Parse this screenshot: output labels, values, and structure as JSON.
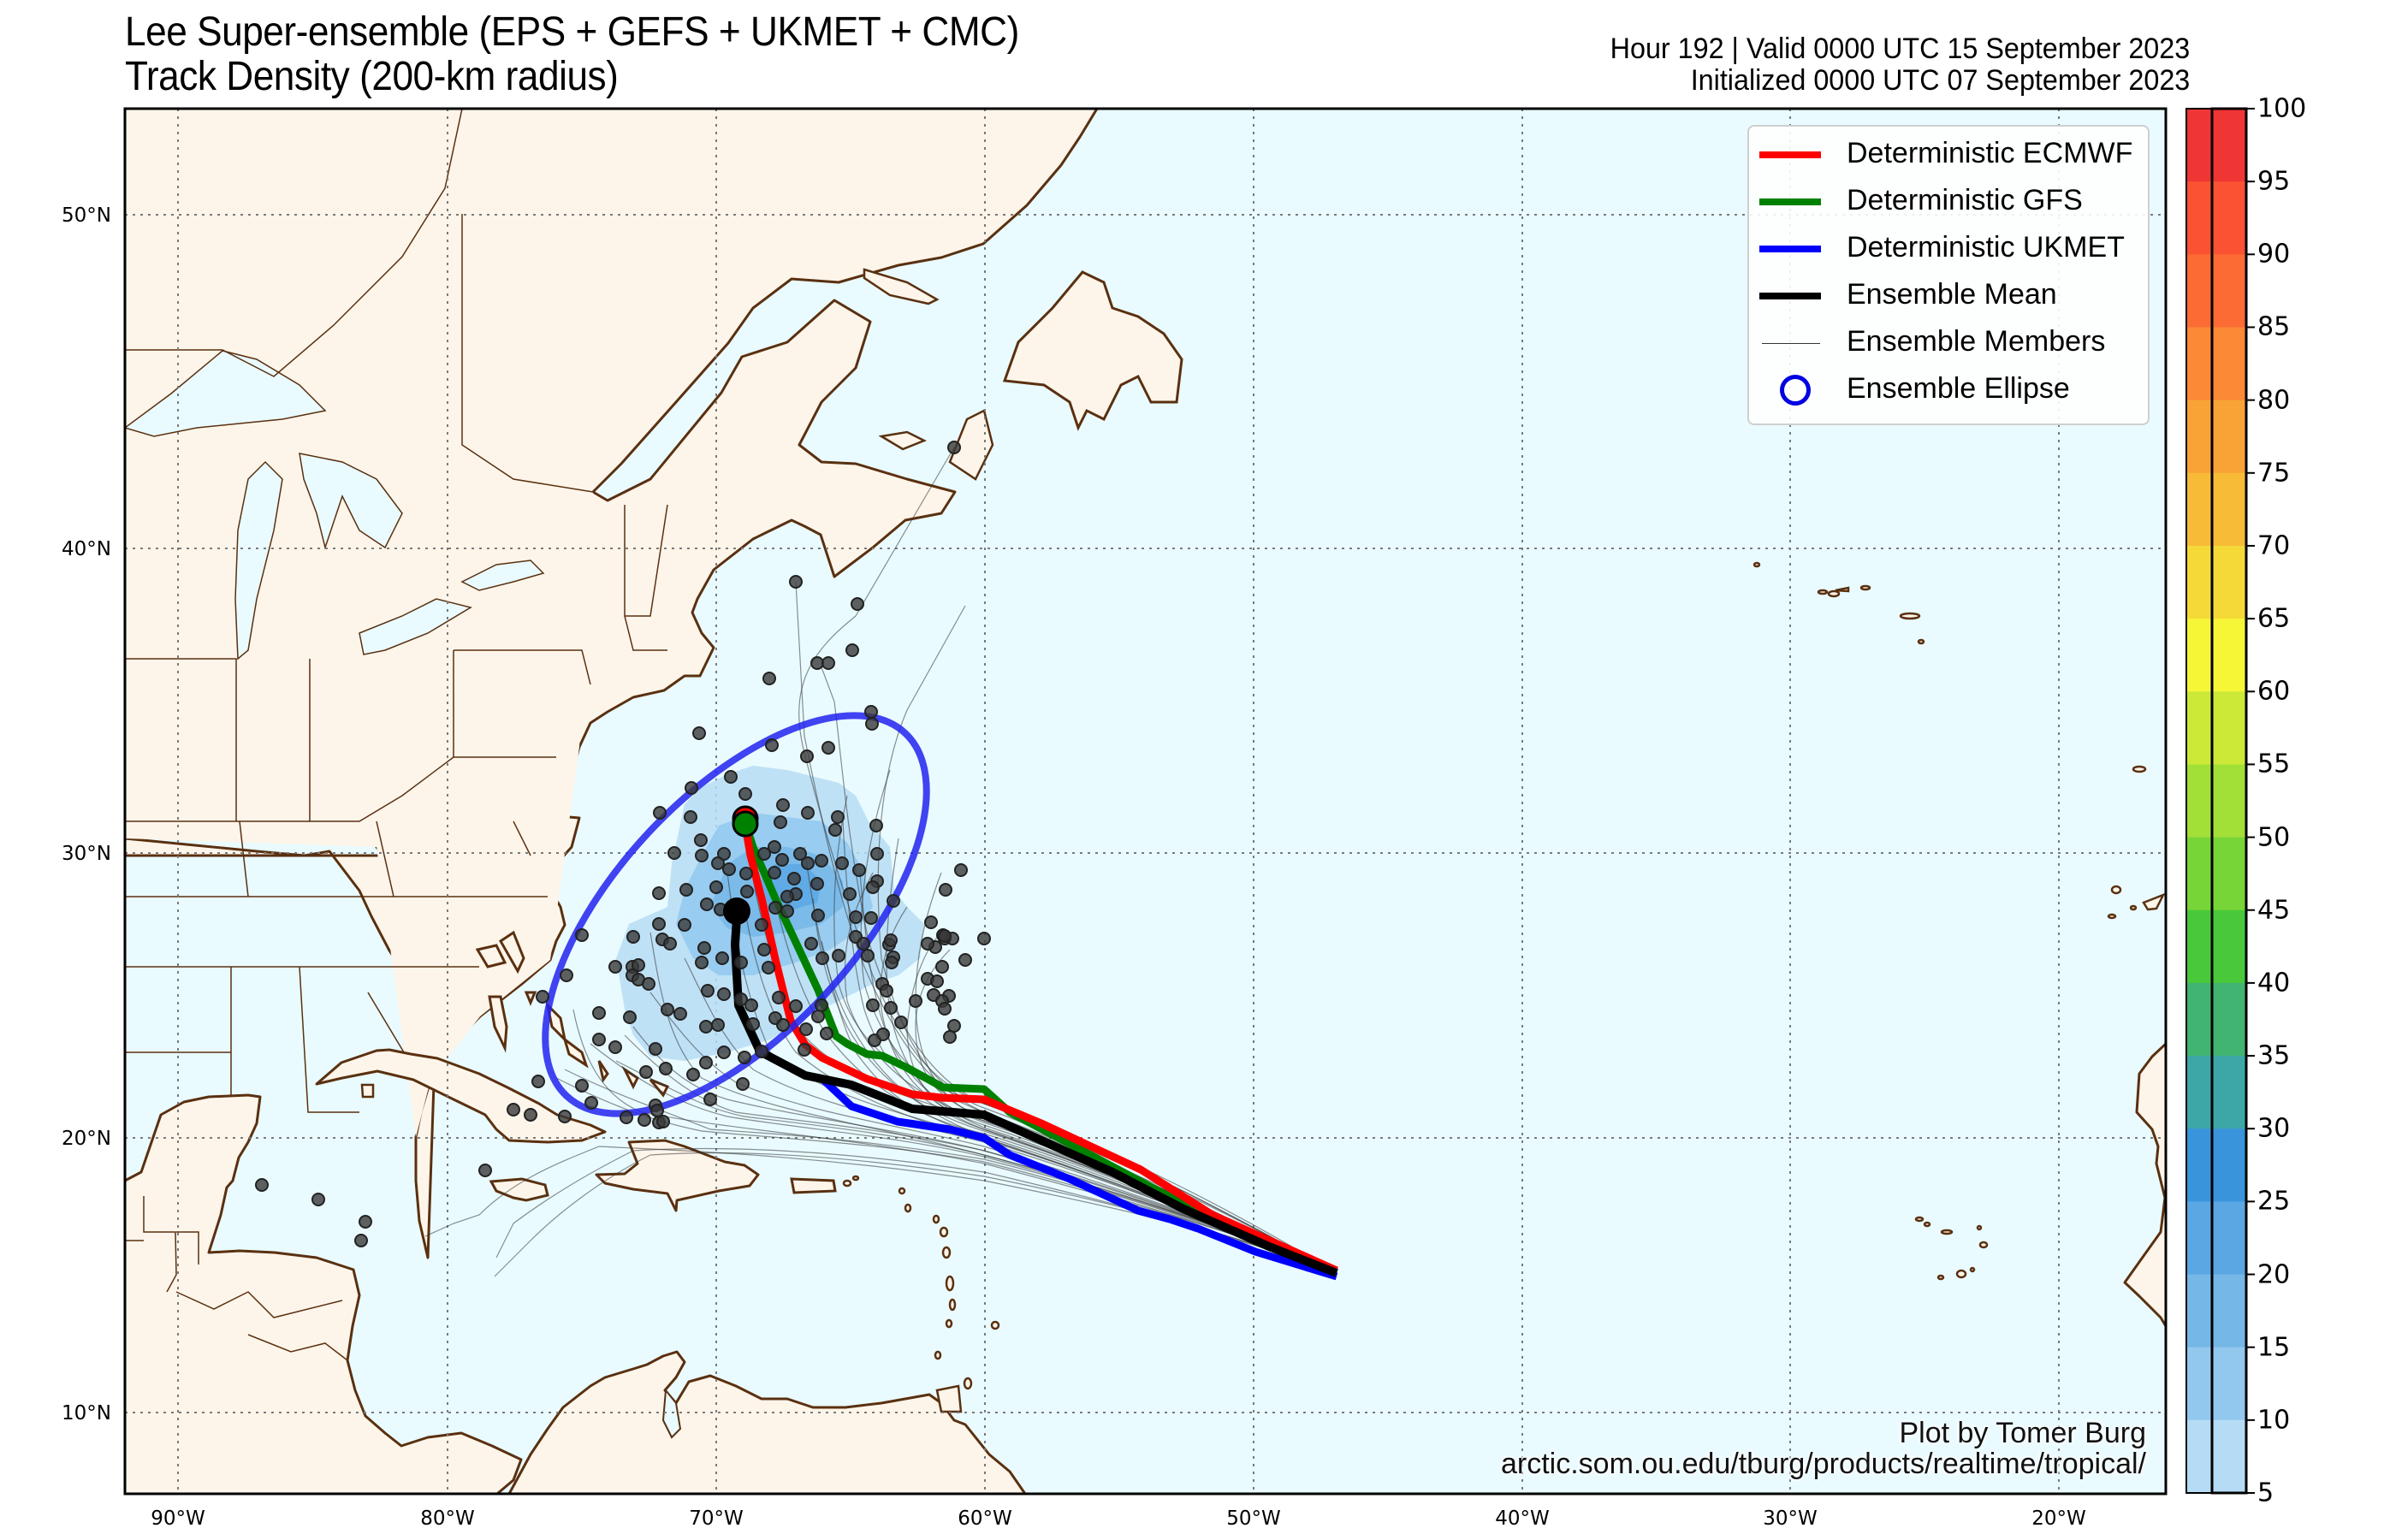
{
  "header": {
    "title_line1": "Lee Super-ensemble (EPS + GEFS + UKMET + CMC)",
    "title_line2": "Track Density (200-km radius)",
    "valid_line": "Hour 192 | Valid 0000 UTC 15 September 2023",
    "init_line": "Initialized 0000 UTC 07 September 2023"
  },
  "legend": {
    "items": [
      {
        "label": "Deterministic ECMWF",
        "color": "#ff0000",
        "style": "thick-line"
      },
      {
        "label": "Deterministic GFS",
        "color": "#008000",
        "style": "thick-line"
      },
      {
        "label": "Deterministic UKMET",
        "color": "#0000ff",
        "style": "thick-line"
      },
      {
        "label": "Ensemble Mean",
        "color": "#000000",
        "style": "thick-line"
      },
      {
        "label": "Ensemble Members",
        "color": "#333333",
        "style": "thin-line"
      },
      {
        "label": "Ensemble Ellipse",
        "color": "#0000e0",
        "style": "circle"
      }
    ]
  },
  "axes": {
    "lon_labels": [
      "90°W",
      "80°W",
      "70°W",
      "60°W",
      "50°W",
      "40°W",
      "30°W",
      "20°W"
    ],
    "lat_labels": [
      "50°N",
      "40°N",
      "30°N",
      "20°N",
      "10°N"
    ]
  },
  "colorbar": {
    "ticks": [
      "100",
      "95",
      "90",
      "85",
      "80",
      "75",
      "70",
      "65",
      "60",
      "55",
      "50",
      "45",
      "40",
      "35",
      "30",
      "25",
      "20",
      "15",
      "10",
      "5"
    ],
    "colors": [
      "#f03535",
      "#fa5233",
      "#fb6b33",
      "#fb8936",
      "#f9a337",
      "#f7bb37",
      "#f5da37",
      "#f6f637",
      "#cde937",
      "#a2e037",
      "#78d537",
      "#49c93a",
      "#41b471",
      "#3da7a8",
      "#3994dc",
      "#5aa7e3",
      "#75b7e7",
      "#92c8ee",
      "#b6dcf5"
    ]
  },
  "credit": {
    "line1": "Plot by Tomer Burg",
    "line2": "arctic.som.ou.edu/tburg/products/realtime/tropical/"
  },
  "chart_data": {
    "type": "map-track-density",
    "title": "Lee Super-ensemble (EPS + GEFS + UKMET + CMC) Track Density (200-km radius)",
    "forecast_hour": 192,
    "valid_time": "0000 UTC 15 September 2023",
    "init_time": "0000 UTC 07 September 2023",
    "extent": {
      "lon": [
        -92,
        -16.3
      ],
      "lat": [
        7.4,
        53.4
      ]
    },
    "density_colorbar": {
      "min": 5,
      "max": 100,
      "step": 5,
      "units": "%"
    },
    "tracks": {
      "start": {
        "lon": -47.0,
        "lat": 15.0
      },
      "ECMWF_end": {
        "lon": -69.1,
        "lat": 31.0
      },
      "GFS_end": {
        "lon": -69.1,
        "lat": 30.7
      },
      "UKMET_visible_start_segment": {
        "lon": -65.5,
        "lat": 22.8
      },
      "ensemble_mean_end": {
        "lon": -69.4,
        "lat": 28.0
      }
    },
    "ensemble_ellipse": {
      "center_lon": -68.0,
      "center_lat": 28.2,
      "orientation": "SW-NE"
    },
    "density_max_region": {
      "lon": [
        -69,
        -65
      ],
      "lat": [
        27,
        31
      ],
      "max_value_approx": 25
    }
  }
}
